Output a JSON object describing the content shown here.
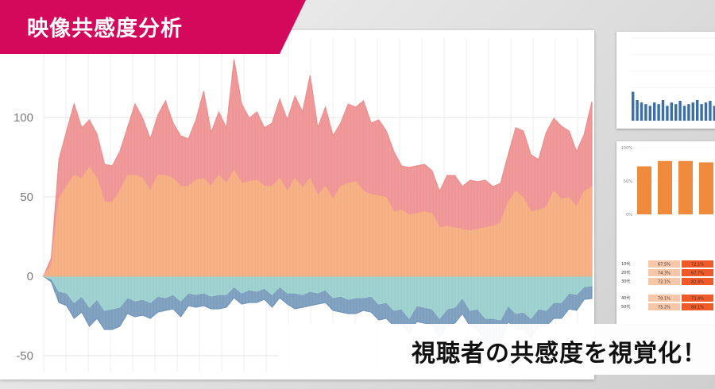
{
  "title": "映像共感度分析",
  "caption": "視聴者の共感度を視覚化！",
  "colors": {
    "banner": "#d5095c",
    "red_series": "#ee8a8a",
    "orange_series": "#f6b07e",
    "teal_series": "#9fd5cf",
    "blue_series": "#6e93b8",
    "thumb_bar_blue": "#3a6fa8",
    "thumb_bar_orange": "#f08a3c"
  },
  "chart_data": {
    "type": "area",
    "ylim": [
      -60,
      150
    ],
    "yticks": [
      "100",
      "50",
      "0",
      "-50"
    ],
    "ytick_values": [
      100,
      50,
      0,
      -50
    ],
    "grid": true,
    "series": [
      {
        "color_key": "orange_series",
        "values": [
          0,
          5,
          50,
          55,
          65,
          60,
          70,
          60,
          48,
          45,
          55,
          62,
          65,
          60,
          55,
          62,
          65,
          60,
          58,
          55,
          62,
          60,
          58,
          62,
          60,
          65,
          60,
          58,
          62,
          55,
          58,
          60,
          55,
          60,
          57,
          60,
          52,
          55,
          50,
          55,
          60,
          58,
          55,
          50,
          52,
          48,
          42,
          40,
          40,
          38,
          42,
          38,
          32,
          30,
          32,
          28,
          30,
          28,
          32,
          30,
          35,
          45,
          55,
          48,
          42,
          40,
          45,
          52,
          50,
          48,
          45,
          52,
          56
        ]
      },
      {
        "color_key": "red_series",
        "values": [
          0,
          10,
          75,
          90,
          110,
          92,
          100,
          88,
          72,
          68,
          80,
          92,
          110,
          98,
          88,
          100,
          112,
          95,
          90,
          85,
          100,
          115,
          92,
          102,
          95,
          135,
          110,
          98,
          105,
          92,
          98,
          110,
          100,
          112,
          105,
          125,
          95,
          105,
          90,
          95,
          110,
          105,
          112,
          95,
          100,
          90,
          80,
          68,
          70,
          68,
          72,
          65,
          55,
          62,
          65,
          55,
          62,
          58,
          62,
          55,
          60,
          75,
          95,
          90,
          78,
          72,
          92,
          98,
          96,
          90,
          80,
          88,
          110
        ]
      },
      {
        "color_key": "teal_series",
        "values": [
          0,
          -3,
          -8,
          -12,
          -15,
          -14,
          -18,
          -16,
          -20,
          -22,
          -18,
          -15,
          -14,
          -16,
          -15,
          -14,
          -12,
          -13,
          -14,
          -12,
          -10,
          -12,
          -11,
          -13,
          -10,
          -8,
          -9,
          -10,
          -8,
          -9,
          -10,
          -8,
          -9,
          -12,
          -10,
          -11,
          -9,
          -10,
          -12,
          -14,
          -13,
          -15,
          -12,
          -14,
          -16,
          -18,
          -20,
          -22,
          -25,
          -20,
          -18,
          -22,
          -25,
          -22,
          -18,
          -15,
          -20,
          -22,
          -25,
          -28,
          -26,
          -20,
          -22,
          -24,
          -25,
          -22,
          -20,
          -18,
          -15,
          -12,
          -10,
          -8,
          -6
        ]
      },
      {
        "color_key": "blue_series",
        "values": [
          0,
          -5,
          -15,
          -20,
          -25,
          -24,
          -30,
          -28,
          -32,
          -35,
          -30,
          -25,
          -24,
          -26,
          -25,
          -24,
          -20,
          -22,
          -24,
          -20,
          -18,
          -20,
          -19,
          -22,
          -18,
          -15,
          -16,
          -18,
          -15,
          -16,
          -18,
          -15,
          -16,
          -22,
          -18,
          -20,
          -16,
          -18,
          -20,
          -24,
          -22,
          -25,
          -20,
          -24,
          -26,
          -28,
          -30,
          -32,
          -35,
          -30,
          -28,
          -32,
          -38,
          -33,
          -28,
          -25,
          -30,
          -35,
          -40,
          -45,
          -42,
          -30,
          -32,
          -35,
          -38,
          -33,
          -30,
          -28,
          -25,
          -22,
          -20,
          -16,
          -14
        ]
      }
    ]
  },
  "thumb_bars": {
    "values": [
      0.35,
      0.25,
      0.22,
      0.2,
      0.18,
      0.22,
      0.2,
      0.25,
      0.18,
      0.22,
      0.2,
      0.24,
      0.18,
      0.2,
      0.22,
      0.25,
      0.2,
      0.22,
      0.24,
      0.18
    ]
  },
  "thumb_orange": {
    "yticks": [
      "100%",
      "50%",
      "0%"
    ],
    "values": [
      0.72,
      0.8,
      0.8,
      0.78
    ],
    "rows": [
      {
        "label": "10代",
        "cells": [
          "67.5%",
          "72.1%"
        ]
      },
      {
        "label": "20代",
        "cells": [
          "74.3%",
          "67.7%"
        ]
      },
      {
        "label": "30代",
        "cells": [
          "72.1%",
          "82.4%"
        ]
      },
      {
        "label": "40代",
        "cells": [
          "70.1%",
          "73.4%"
        ]
      },
      {
        "label": "50代",
        "cells": [
          "75.2%",
          "80.1%"
        ]
      }
    ]
  }
}
